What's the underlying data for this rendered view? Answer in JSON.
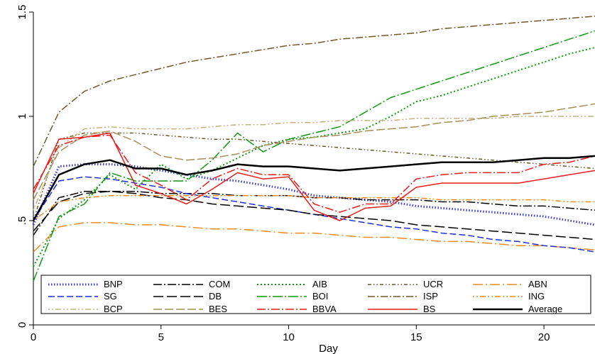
{
  "chart_data": {
    "type": "line",
    "xlabel": "Day",
    "ylabel": "",
    "xlim": [
      0,
      22
    ],
    "ylim": [
      0,
      1.5
    ],
    "x_ticks": [
      0,
      5,
      10,
      15,
      20
    ],
    "x_tick_labels": [
      "0",
      "5",
      "10",
      "15",
      "20"
    ],
    "y_ticks": [
      0,
      0.5,
      1,
      1.5
    ],
    "y_tick_labels": [
      "0",
      ".5",
      "1",
      "1.5"
    ],
    "grid": false,
    "legend_placement": "bottom",
    "legend_columns": 5,
    "x": [
      0,
      1,
      2,
      3,
      4,
      5,
      6,
      7,
      8,
      9,
      10,
      11,
      12,
      13,
      14,
      15,
      16,
      17,
      18,
      19,
      20,
      21,
      22
    ],
    "series": [
      {
        "name": "BNP",
        "color": "#3b3bd6",
        "dash": "1.5,2.5",
        "width": 3,
        "values": [
          0.48,
          0.76,
          0.77,
          0.77,
          0.76,
          0.74,
          0.72,
          0.7,
          0.69,
          0.67,
          0.65,
          0.62,
          0.61,
          0.6,
          0.59,
          0.57,
          0.56,
          0.55,
          0.54,
          0.53,
          0.52,
          0.5,
          0.48
        ]
      },
      {
        "name": "COM",
        "color": "#000000",
        "dash": "12,3,2,3",
        "width": 1.5,
        "values": [
          0.43,
          0.61,
          0.64,
          0.64,
          0.64,
          0.63,
          0.63,
          0.63,
          0.62,
          0.62,
          0.62,
          0.61,
          0.61,
          0.6,
          0.6,
          0.6,
          0.59,
          0.59,
          0.58,
          0.57,
          0.57,
          0.56,
          0.55
        ]
      },
      {
        "name": "AIB",
        "color": "#119911",
        "dash": "2,3",
        "width": 2,
        "values": [
          0.28,
          0.51,
          0.6,
          0.72,
          0.65,
          0.77,
          0.7,
          0.74,
          0.8,
          0.86,
          0.89,
          0.9,
          0.92,
          0.94,
          1.0,
          1.07,
          1.1,
          1.14,
          1.18,
          1.22,
          1.26,
          1.3,
          1.33
        ]
      },
      {
        "name": "UCR",
        "color": "#6b5a2a",
        "dash": "5,3,1.5,3,1.5,3",
        "width": 1.5,
        "values": [
          0.5,
          0.89,
          0.92,
          0.92,
          0.92,
          0.91,
          0.9,
          0.89,
          0.89,
          0.88,
          0.87,
          0.86,
          0.85,
          0.84,
          0.83,
          0.82,
          0.81,
          0.8,
          0.79,
          0.78,
          0.77,
          0.76,
          0.75
        ]
      },
      {
        "name": "ABN",
        "color": "#f08a1c",
        "dash": "14,4,2,4",
        "width": 1.5,
        "values": [
          0.35,
          0.47,
          0.49,
          0.49,
          0.48,
          0.48,
          0.47,
          0.46,
          0.46,
          0.45,
          0.44,
          0.44,
          0.43,
          0.42,
          0.42,
          0.41,
          0.4,
          0.4,
          0.39,
          0.38,
          0.38,
          0.37,
          0.36
        ]
      },
      {
        "name": "SG",
        "color": "#1f2fd8",
        "dash": "9,4",
        "width": 1.5,
        "values": [
          0.5,
          0.69,
          0.71,
          0.7,
          0.68,
          0.66,
          0.63,
          0.61,
          0.59,
          0.57,
          0.55,
          0.53,
          0.51,
          0.49,
          0.47,
          0.46,
          0.44,
          0.43,
          0.41,
          0.4,
          0.38,
          0.37,
          0.35
        ]
      },
      {
        "name": "DB",
        "color": "#000000",
        "dash": "14,5",
        "width": 1.5,
        "values": [
          0.45,
          0.59,
          0.63,
          0.64,
          0.63,
          0.61,
          0.6,
          0.58,
          0.57,
          0.56,
          0.55,
          0.53,
          0.52,
          0.51,
          0.5,
          0.48,
          0.47,
          0.46,
          0.45,
          0.44,
          0.43,
          0.42,
          0.41
        ]
      },
      {
        "name": "BOI",
        "color": "#119911",
        "dash": "14,3,2,3",
        "width": 1.5,
        "values": [
          0.21,
          0.52,
          0.58,
          0.73,
          0.69,
          0.69,
          0.69,
          0.79,
          0.92,
          0.83,
          0.89,
          0.92,
          0.95,
          1.02,
          1.09,
          1.13,
          1.17,
          1.21,
          1.25,
          1.29,
          1.33,
          1.37,
          1.41
        ]
      },
      {
        "name": "ISP",
        "color": "#6b5a2a",
        "dash": "10,3,2,3",
        "width": 1.5,
        "values": [
          0.76,
          1.02,
          1.12,
          1.17,
          1.2,
          1.23,
          1.26,
          1.28,
          1.3,
          1.32,
          1.34,
          1.35,
          1.37,
          1.38,
          1.39,
          1.4,
          1.42,
          1.43,
          1.44,
          1.45,
          1.46,
          1.47,
          1.48
        ]
      },
      {
        "name": "ING",
        "color": "#f08a1c",
        "dash": "2,3,2,3,8,3",
        "width": 1.5,
        "values": [
          0.5,
          0.59,
          0.61,
          0.62,
          0.62,
          0.62,
          0.62,
          0.62,
          0.62,
          0.62,
          0.62,
          0.61,
          0.61,
          0.61,
          0.61,
          0.61,
          0.6,
          0.6,
          0.6,
          0.6,
          0.6,
          0.59,
          0.59
        ]
      },
      {
        "name": "BCP",
        "color": "#c2b282",
        "dash": "2,3,2,3,8,3",
        "width": 1.5,
        "values": [
          0.55,
          0.85,
          0.94,
          0.95,
          0.94,
          0.94,
          0.94,
          0.95,
          0.96,
          0.96,
          0.97,
          0.97,
          0.98,
          0.98,
          0.98,
          0.99,
          0.99,
          0.99,
          0.99,
          1.0,
          1.0,
          1.0,
          1.0
        ]
      },
      {
        "name": "BES",
        "color": "#a68f5a",
        "dash": "12,4",
        "width": 1.5,
        "values": [
          0.6,
          0.83,
          0.91,
          0.93,
          0.88,
          0.81,
          0.79,
          0.8,
          0.82,
          0.86,
          0.88,
          0.9,
          0.91,
          0.93,
          0.94,
          0.95,
          0.97,
          0.98,
          1.0,
          1.01,
          1.02,
          1.04,
          1.06
        ]
      },
      {
        "name": "BBVA",
        "color": "#e81c1c",
        "dash": "12,3,2,3",
        "width": 1.5,
        "values": [
          0.65,
          0.86,
          0.9,
          0.91,
          0.73,
          0.67,
          0.6,
          0.7,
          0.75,
          0.72,
          0.72,
          0.58,
          0.54,
          0.58,
          0.58,
          0.7,
          0.72,
          0.73,
          0.73,
          0.73,
          0.77,
          0.78,
          0.81
        ]
      },
      {
        "name": "BS",
        "color": "#e81c1c",
        "dash": "",
        "width": 1.5,
        "values": [
          0.63,
          0.89,
          0.9,
          0.92,
          0.67,
          0.63,
          0.58,
          0.65,
          0.73,
          0.7,
          0.71,
          0.55,
          0.5,
          0.56,
          0.57,
          0.66,
          0.68,
          0.68,
          0.68,
          0.68,
          0.7,
          0.72,
          0.74
        ]
      },
      {
        "name": "Average",
        "color": "#000000",
        "dash": "",
        "width": 2.5,
        "values": [
          0.5,
          0.72,
          0.77,
          0.79,
          0.75,
          0.75,
          0.72,
          0.74,
          0.77,
          0.76,
          0.76,
          0.75,
          0.74,
          0.75,
          0.76,
          0.77,
          0.78,
          0.78,
          0.78,
          0.79,
          0.8,
          0.8,
          0.81
        ]
      }
    ]
  }
}
